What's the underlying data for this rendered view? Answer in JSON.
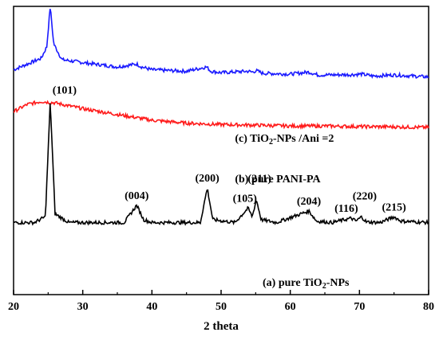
{
  "chart_data": {
    "type": "line",
    "xlabel": "2 theta",
    "ylabel": "",
    "xlim": [
      20,
      80
    ],
    "x_ticks": [
      20,
      30,
      40,
      50,
      60,
      70,
      80
    ],
    "y_ticks_shown": false,
    "grid": false,
    "legend": "none",
    "series": [
      {
        "label": "(c) TiO2-NPs /Ani =2",
        "label_text": "(c) TiO",
        "label_sub": "2",
        "label_rest": "-NPs /Ani =2",
        "color": "#1a1aff",
        "label_x": 52,
        "baseline_y": 0.83,
        "points": [
          [
            20,
            0.78
          ],
          [
            22,
            0.8
          ],
          [
            24,
            0.82
          ],
          [
            24.8,
            0.86
          ],
          [
            25.3,
            1.0
          ],
          [
            25.8,
            0.87
          ],
          [
            27,
            0.815
          ],
          [
            30,
            0.805
          ],
          [
            35,
            0.79
          ],
          [
            37.8,
            0.8
          ],
          [
            38.5,
            0.79
          ],
          [
            40,
            0.78
          ],
          [
            45,
            0.775
          ],
          [
            47.9,
            0.79
          ],
          [
            48.5,
            0.775
          ],
          [
            50,
            0.77
          ],
          [
            53.9,
            0.775
          ],
          [
            54.5,
            0.772
          ],
          [
            55.1,
            0.777
          ],
          [
            56,
            0.768
          ],
          [
            60,
            0.765
          ],
          [
            62.7,
            0.772
          ],
          [
            64,
            0.762
          ],
          [
            68.8,
            0.763
          ],
          [
            70.3,
            0.765
          ],
          [
            72,
            0.758
          ],
          [
            75,
            0.762
          ],
          [
            80,
            0.755
          ]
        ]
      },
      {
        "label": "(b) pure PANI-PA",
        "color": "#ff1a1a",
        "label_x": 52,
        "points": [
          [
            20,
            0.635
          ],
          [
            22,
            0.66
          ],
          [
            24,
            0.67
          ],
          [
            26,
            0.665
          ],
          [
            28,
            0.655
          ],
          [
            30,
            0.645
          ],
          [
            35,
            0.625
          ],
          [
            40,
            0.605
          ],
          [
            45,
            0.595
          ],
          [
            50,
            0.59
          ],
          [
            55,
            0.588
          ],
          [
            60,
            0.585
          ],
          [
            65,
            0.585
          ],
          [
            70,
            0.583
          ],
          [
            75,
            0.582
          ],
          [
            80,
            0.58
          ]
        ]
      },
      {
        "label": "(a) pure TiO2-NPs",
        "label_text": "(a) pure TiO",
        "label_sub": "2",
        "label_rest": "-NPs",
        "color": "#000000",
        "label_x": 56,
        "points": [
          [
            20,
            0.25
          ],
          [
            23,
            0.25
          ],
          [
            24.6,
            0.27
          ],
          [
            25.3,
            0.67
          ],
          [
            26,
            0.28
          ],
          [
            28,
            0.25
          ],
          [
            36,
            0.25
          ],
          [
            37.8,
            0.31
          ],
          [
            38.8,
            0.26
          ],
          [
            40,
            0.25
          ],
          [
            47,
            0.25
          ],
          [
            48,
            0.37
          ],
          [
            48.8,
            0.26
          ],
          [
            52,
            0.25
          ],
          [
            53.9,
            0.3
          ],
          [
            54.5,
            0.27
          ],
          [
            55.1,
            0.33
          ],
          [
            55.8,
            0.26
          ],
          [
            58,
            0.25
          ],
          [
            62.7,
            0.29
          ],
          [
            63.8,
            0.255
          ],
          [
            66,
            0.25
          ],
          [
            68.8,
            0.265
          ],
          [
            69.5,
            0.255
          ],
          [
            70.3,
            0.27
          ],
          [
            71,
            0.252
          ],
          [
            73,
            0.25
          ],
          [
            75,
            0.27
          ],
          [
            76,
            0.255
          ],
          [
            80,
            0.25
          ]
        ]
      }
    ],
    "peak_labels": [
      {
        "text": "(101)",
        "x": 25.3,
        "y": 0.67
      },
      {
        "text": "(004)",
        "x": 37.8,
        "y": 0.31
      },
      {
        "text": "(200)",
        "x": 48.0,
        "y": 0.37
      },
      {
        "text": "(105)",
        "x": 53.9,
        "y": 0.3
      },
      {
        "text": "(211)",
        "x": 55.1,
        "y": 0.33
      },
      {
        "text": "(204)",
        "x": 62.7,
        "y": 0.29
      },
      {
        "text": "(116)",
        "x": 68.8,
        "y": 0.265
      },
      {
        "text": "(220)",
        "x": 70.3,
        "y": 0.27
      },
      {
        "text": "(215)",
        "x": 75.0,
        "y": 0.27
      }
    ]
  }
}
